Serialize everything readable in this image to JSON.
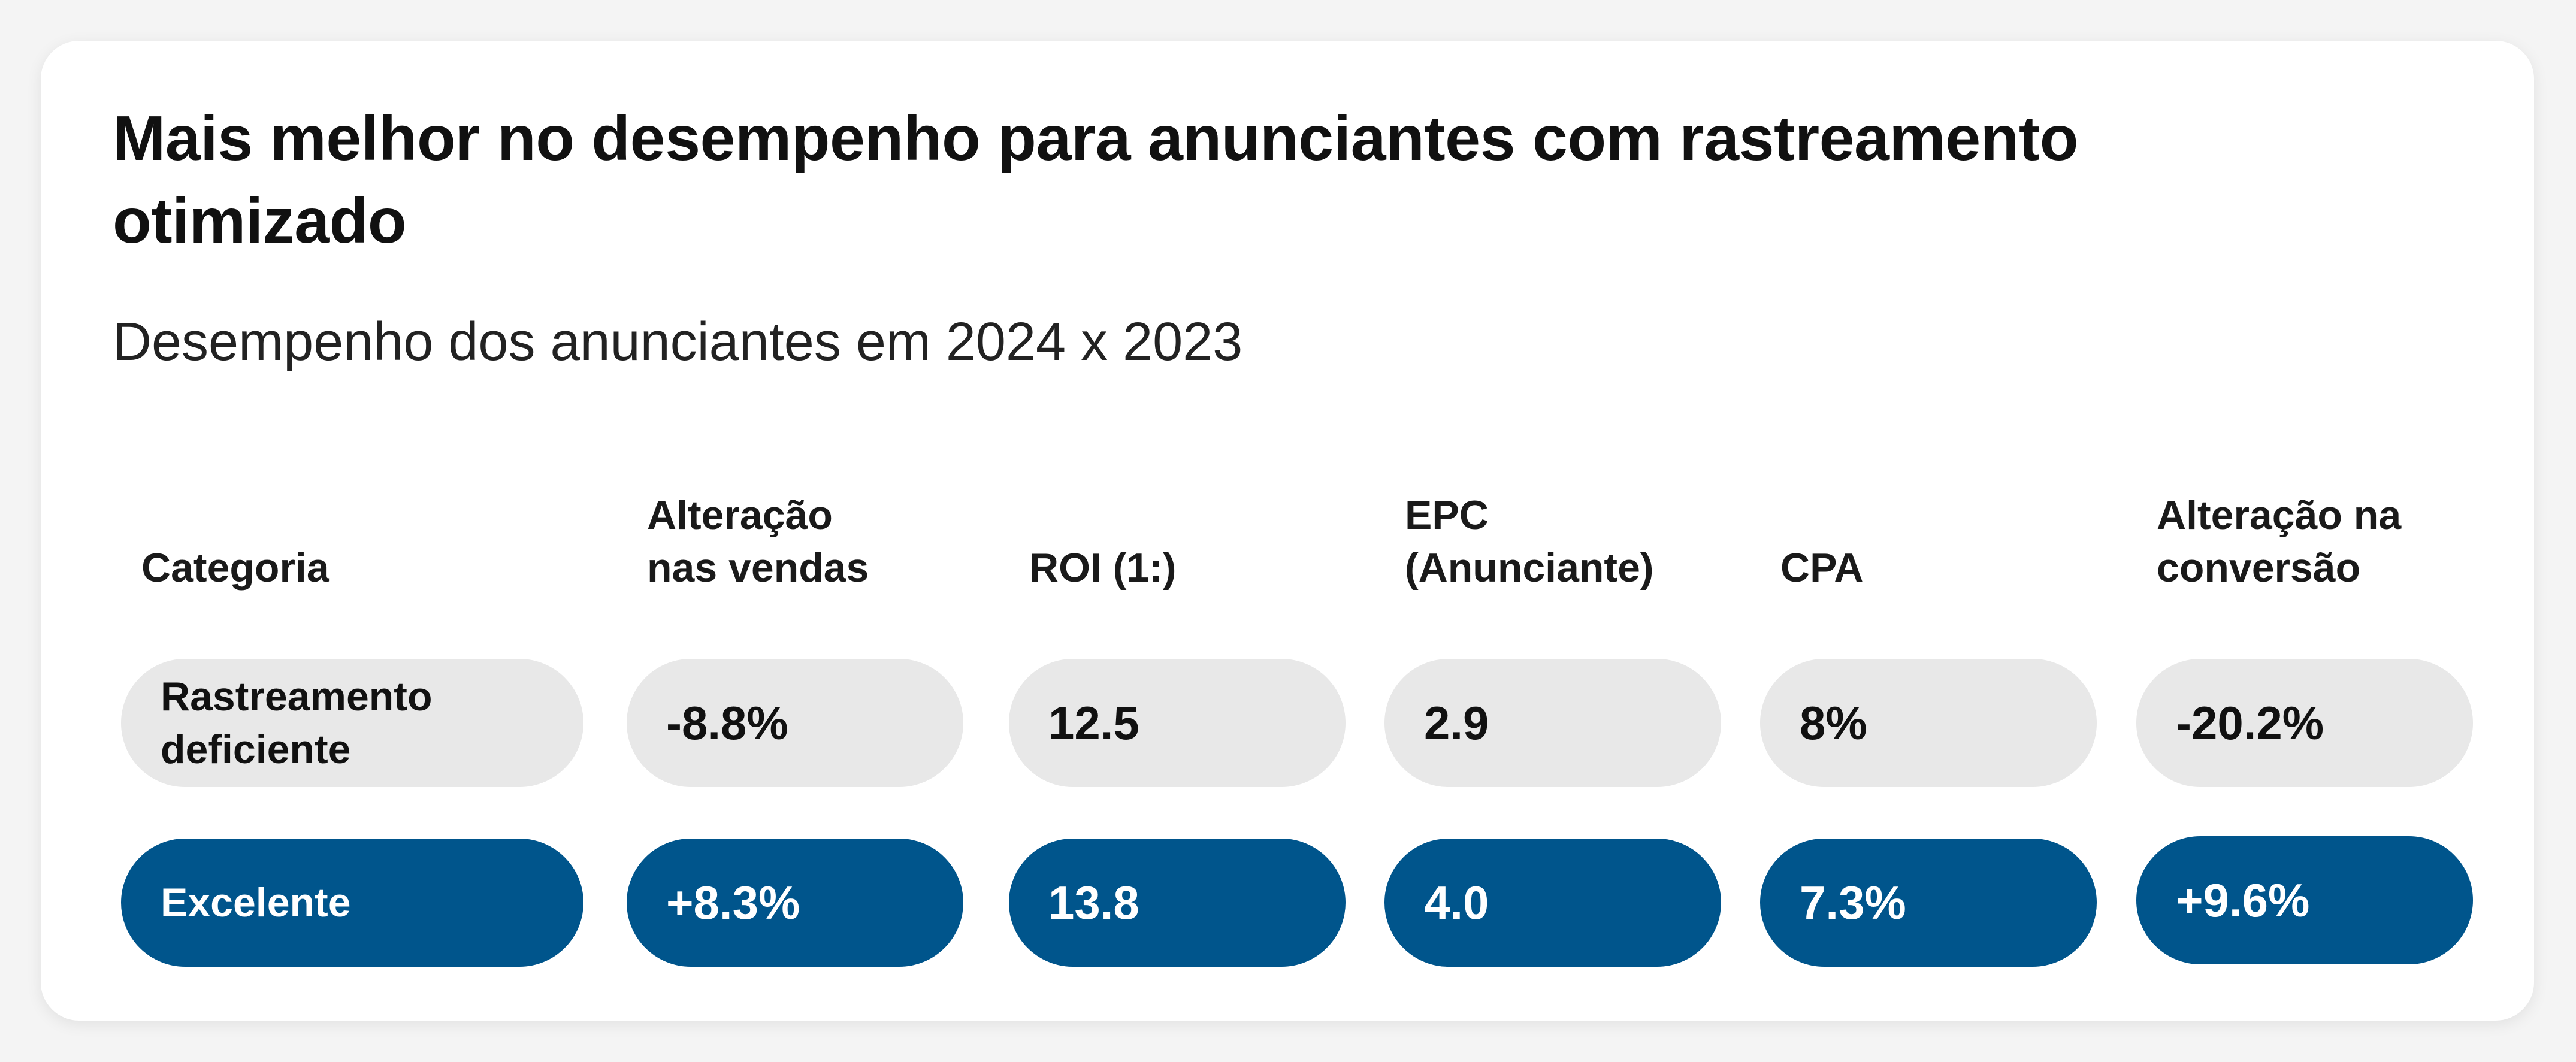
{
  "chart_data": {
    "type": "table",
    "title": "Mais melhor no desempenho para anunciantes com rastreamento otimizado",
    "subtitle": "Desempenho dos anunciantes em 2024 x 2023",
    "columns": [
      "Categoria",
      "Alteração nas vendas",
      "ROI (1:)",
      "EPC (Anunciante)",
      "CPA",
      "Alteração na conversão"
    ],
    "rows": [
      {
        "category": "Rastreamento deficiente",
        "values": [
          "-8.8%",
          "12.5",
          "2.9",
          "8%",
          "-20.2%"
        ]
      },
      {
        "category": "Excelente",
        "values": [
          "+8.3%",
          "13.8",
          "4.0",
          "7.3%",
          "+9.6%"
        ]
      }
    ],
    "colors": {
      "poor_row_bg": "#e8e8e8",
      "good_row_bg": "#00558c"
    }
  }
}
